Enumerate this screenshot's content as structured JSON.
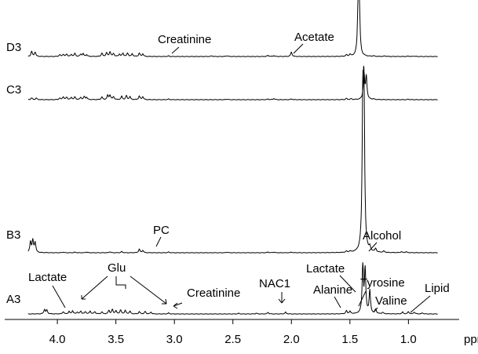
{
  "chart_data": {
    "type": "line",
    "xlabel": "ppm",
    "x_reversed": true,
    "xlim": [
      4.45,
      0.6
    ],
    "x_ticks": [
      "4.0",
      "3.5",
      "3.0",
      "2.5",
      "2.0",
      "1.5",
      "1.0"
    ],
    "x_tick_values": [
      4.0,
      3.5,
      3.0,
      2.5,
      2.0,
      1.5,
      1.0
    ],
    "series": [
      {
        "name": "D3",
        "peaks": [
          [
            4.22,
            0.35
          ],
          [
            4.19,
            0.3
          ],
          [
            3.98,
            0.12
          ],
          [
            3.95,
            0.15
          ],
          [
            3.92,
            0.16
          ],
          [
            3.88,
            0.13
          ],
          [
            3.85,
            0.2
          ],
          [
            3.8,
            0.15
          ],
          [
            3.78,
            0.18
          ],
          [
            3.75,
            0.12
          ],
          [
            3.62,
            0.22
          ],
          [
            3.58,
            0.25
          ],
          [
            3.55,
            0.32
          ],
          [
            3.52,
            0.2
          ],
          [
            3.47,
            0.16
          ],
          [
            3.44,
            0.22
          ],
          [
            3.4,
            0.24
          ],
          [
            3.36,
            0.18
          ],
          [
            3.3,
            0.22
          ],
          [
            3.27,
            0.18
          ],
          [
            3.05,
            0.04
          ],
          [
            2.68,
            0.05
          ],
          [
            2.55,
            0.06
          ],
          [
            2.2,
            0.08
          ],
          [
            2.15,
            0.06
          ],
          [
            2.0,
            0.3
          ],
          [
            1.53,
            0.1
          ],
          [
            1.5,
            0.12
          ],
          [
            1.43,
            3.1
          ],
          [
            1.42,
            3.3
          ],
          [
            1.3,
            0.04
          ],
          [
            1.2,
            0.04
          ],
          [
            1.0,
            0.03
          ],
          [
            0.95,
            0.03
          ]
        ]
      },
      {
        "name": "C3",
        "peaks": [
          [
            4.22,
            0.12
          ],
          [
            4.18,
            0.11
          ],
          [
            3.98,
            0.1
          ],
          [
            3.95,
            0.2
          ],
          [
            3.92,
            0.17
          ],
          [
            3.88,
            0.15
          ],
          [
            3.85,
            0.18
          ],
          [
            3.8,
            0.15
          ],
          [
            3.77,
            0.2
          ],
          [
            3.75,
            0.15
          ],
          [
            3.62,
            0.18
          ],
          [
            3.57,
            0.28
          ],
          [
            3.55,
            0.3
          ],
          [
            3.52,
            0.2
          ],
          [
            3.45,
            0.22
          ],
          [
            3.41,
            0.26
          ],
          [
            3.38,
            0.2
          ],
          [
            3.3,
            0.24
          ],
          [
            3.27,
            0.2
          ],
          [
            3.05,
            0.04
          ],
          [
            2.55,
            0.04
          ],
          [
            2.2,
            0.05
          ],
          [
            2.15,
            0.08
          ],
          [
            2.0,
            0.05
          ],
          [
            1.53,
            0.08
          ],
          [
            1.49,
            0.06
          ],
          [
            1.38,
            1.7
          ],
          [
            1.36,
            1.5
          ],
          [
            1.3,
            0.04
          ],
          [
            1.0,
            0.03
          ]
        ]
      },
      {
        "name": "B3",
        "peaks": [
          [
            4.23,
            0.9
          ],
          [
            4.21,
            1.0
          ],
          [
            4.19,
            0.85
          ],
          [
            3.95,
            0.05
          ],
          [
            3.85,
            0.05
          ],
          [
            3.75,
            0.06
          ],
          [
            3.55,
            0.08
          ],
          [
            3.45,
            0.1
          ],
          [
            3.3,
            0.3
          ],
          [
            3.27,
            0.2
          ],
          [
            3.05,
            0.06
          ],
          [
            2.55,
            0.05
          ],
          [
            2.2,
            0.06
          ],
          [
            2.15,
            0.05
          ],
          [
            2.0,
            0.05
          ],
          [
            1.53,
            0.1
          ],
          [
            1.5,
            0.1
          ],
          [
            1.39,
            11.2
          ],
          [
            1.38,
            12.0
          ],
          [
            1.33,
            0.35
          ],
          [
            1.28,
            0.3
          ],
          [
            1.21,
            0.12
          ],
          [
            1.06,
            0.08
          ],
          [
            1.02,
            0.08
          ]
        ]
      },
      {
        "name": "A3",
        "peaks": [
          [
            4.11,
            0.35
          ],
          [
            4.09,
            0.3
          ],
          [
            3.95,
            0.18
          ],
          [
            3.9,
            0.2
          ],
          [
            3.87,
            0.25
          ],
          [
            3.83,
            0.15
          ],
          [
            3.8,
            0.22
          ],
          [
            3.76,
            0.18
          ],
          [
            3.72,
            0.22
          ],
          [
            3.68,
            0.18
          ],
          [
            3.62,
            0.16
          ],
          [
            3.56,
            0.28
          ],
          [
            3.53,
            0.35
          ],
          [
            3.5,
            0.25
          ],
          [
            3.46,
            0.32
          ],
          [
            3.42,
            0.28
          ],
          [
            3.38,
            0.22
          ],
          [
            3.3,
            0.18
          ],
          [
            3.25,
            0.2
          ],
          [
            3.2,
            0.14
          ],
          [
            3.05,
            0.08
          ],
          [
            2.45,
            0.05
          ],
          [
            2.3,
            0.06
          ],
          [
            2.2,
            0.12
          ],
          [
            2.05,
            0.14
          ],
          [
            1.53,
            0.25
          ],
          [
            1.5,
            0.2
          ],
          [
            1.39,
            3.7
          ],
          [
            1.37,
            3.4
          ],
          [
            1.33,
            1.8
          ],
          [
            1.28,
            0.35
          ],
          [
            1.22,
            0.12
          ],
          [
            1.05,
            0.15
          ],
          [
            1.0,
            0.18
          ],
          [
            0.95,
            0.15
          ],
          [
            0.88,
            0.08
          ]
        ]
      }
    ],
    "annotations": [
      {
        "text": "Creatinine",
        "target_ppm": 3.1,
        "series": "D3"
      },
      {
        "text": "Acetate",
        "target_ppm": 2.0,
        "series": "D3"
      },
      {
        "text": "PC",
        "target_ppm": 3.28,
        "series": "B3"
      },
      {
        "text": "Alcohol",
        "target_ppm": 1.2,
        "series": "B3"
      },
      {
        "text": "Lactate",
        "target_ppm": 4.1,
        "series": "A3"
      },
      {
        "text": "Glu",
        "target_ppm": [
          3.75,
          3.25
        ],
        "series": "A3"
      },
      {
        "text": "Creatinine",
        "target_ppm": 3.05,
        "series": "A3"
      },
      {
        "text": "NAC1",
        "target_ppm": 2.05,
        "series": "A3"
      },
      {
        "text": "Alanine",
        "target_ppm": 1.5,
        "series": "A3"
      },
      {
        "text": "Lactate",
        "target_ppm": 1.33,
        "series": "A3"
      },
      {
        "text": "Tyrosine",
        "target_ppm": 1.28,
        "series": "A3"
      },
      {
        "text": "Valine",
        "target_ppm": 1.0,
        "series": "A3"
      },
      {
        "text": "Lipid",
        "target_ppm": 0.9,
        "series": "A3"
      }
    ],
    "grid": false,
    "legend": "series names as row labels at left"
  }
}
